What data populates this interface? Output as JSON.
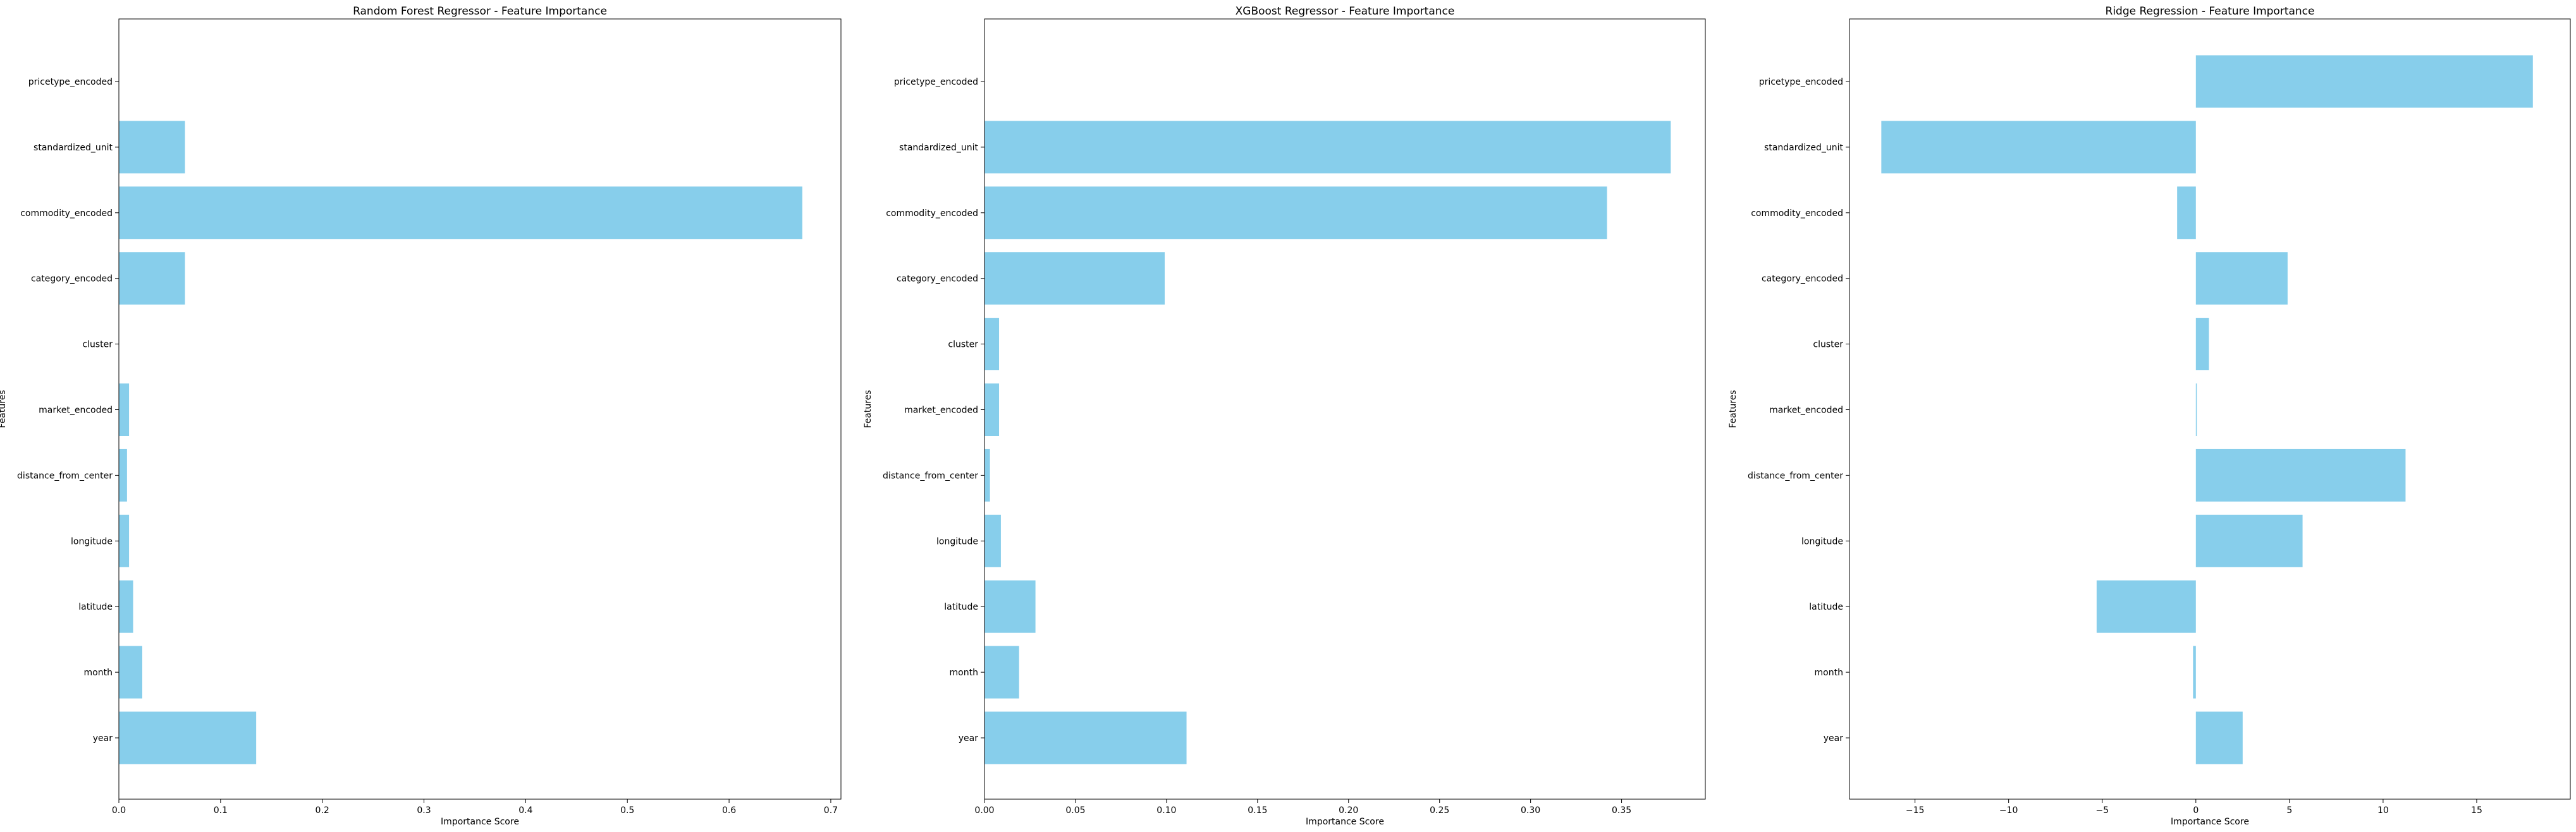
{
  "chart_data": [
    {
      "type": "bar",
      "orientation": "horizontal",
      "title": "Random Forest Regressor - Feature Importance",
      "xlabel": "Importance Score",
      "ylabel": "Features",
      "categories": [
        "year",
        "month",
        "latitude",
        "longitude",
        "distance_from_center",
        "market_encoded",
        "cluster",
        "category_encoded",
        "commodity_encoded",
        "standardized_unit",
        "pricetype_encoded"
      ],
      "values": [
        0.135,
        0.023,
        0.014,
        0.01,
        0.008,
        0.01,
        0.0,
        0.065,
        0.672,
        0.065,
        0.0
      ],
      "xlim": [
        0,
        0.71
      ],
      "xticks": [
        0.0,
        0.1,
        0.2,
        0.3,
        0.4,
        0.5,
        0.6,
        0.7
      ],
      "xtick_labels": [
        "0.0",
        "0.1",
        "0.2",
        "0.3",
        "0.4",
        "0.5",
        "0.6",
        "0.7"
      ],
      "bar_color": "#87ceeb",
      "grid": false
    },
    {
      "type": "bar",
      "orientation": "horizontal",
      "title": "XGBoost Regressor - Feature Importance",
      "xlabel": "Importance Score",
      "ylabel": "Features",
      "categories": [
        "year",
        "month",
        "latitude",
        "longitude",
        "distance_from_center",
        "market_encoded",
        "cluster",
        "category_encoded",
        "commodity_encoded",
        "standardized_unit",
        "pricetype_encoded"
      ],
      "values": [
        0.111,
        0.019,
        0.028,
        0.009,
        0.003,
        0.008,
        0.008,
        0.099,
        0.342,
        0.377,
        0.0
      ],
      "xlim": [
        0,
        0.396
      ],
      "xticks": [
        0.0,
        0.05,
        0.1,
        0.15,
        0.2,
        0.25,
        0.3,
        0.35
      ],
      "xtick_labels": [
        "0.00",
        "0.05",
        "0.10",
        "0.15",
        "0.20",
        "0.25",
        "0.30",
        "0.35"
      ],
      "bar_color": "#87ceeb",
      "grid": false
    },
    {
      "type": "bar",
      "orientation": "horizontal",
      "title": "Ridge Regression - Feature Importance",
      "xlabel": "Importance Score",
      "ylabel": "Features",
      "categories": [
        "year",
        "month",
        "latitude",
        "longitude",
        "distance_from_center",
        "market_encoded",
        "cluster",
        "category_encoded",
        "commodity_encoded",
        "standardized_unit",
        "pricetype_encoded"
      ],
      "values": [
        2.5,
        -0.15,
        -5.3,
        5.7,
        11.2,
        0.05,
        0.7,
        4.9,
        -1.0,
        -16.8,
        18.0
      ],
      "xlim": [
        -18.5,
        20.0
      ],
      "xticks": [
        -15,
        -10,
        -5,
        0,
        5,
        10,
        15
      ],
      "xtick_labels": [
        "−15",
        "−10",
        "−5",
        "0",
        "5",
        "10",
        "15"
      ],
      "bar_color": "#87ceeb",
      "grid": false
    }
  ]
}
